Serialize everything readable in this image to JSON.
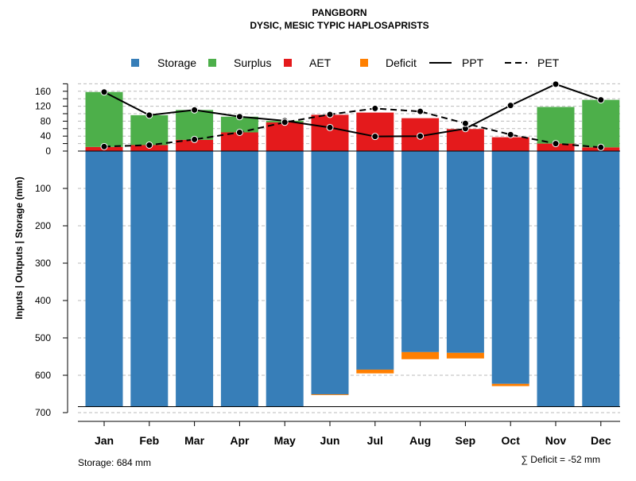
{
  "chart_data": {
    "type": "bar",
    "title": "PANGBORN",
    "subtitle": "DYSIC, MESIC TYPIC HAPLOSAPRISTS",
    "ylabel": "Inputs | Outputs | Storage    (mm)",
    "categories": [
      "Jan",
      "Feb",
      "Mar",
      "Apr",
      "May",
      "Jun",
      "Jul",
      "Aug",
      "Sep",
      "Oct",
      "Nov",
      "Dec"
    ],
    "upper_ticks": [
      0,
      40,
      80,
      120,
      160
    ],
    "lower_ticks": [
      100,
      200,
      300,
      400,
      500,
      600,
      700
    ],
    "ylim": [
      -700,
      180
    ],
    "legend": [
      "Storage",
      "Surplus",
      "AET",
      "Deficit",
      "PPT",
      "PET"
    ],
    "legend_position": "top",
    "colors": {
      "storage": "#377EB8",
      "surplus": "#4DAF4A",
      "aet": "#E41A1C",
      "deficit": "#FF7F00"
    },
    "series": [
      {
        "name": "Storage",
        "values": [
          684,
          684,
          684,
          684,
          684,
          651,
          585,
          538,
          540,
          623,
          684,
          684
        ]
      },
      {
        "name": "Deficit",
        "values": [
          0,
          0,
          0,
          0,
          0,
          2,
          10,
          19,
          15,
          6,
          0,
          0
        ]
      },
      {
        "name": "AET",
        "values": [
          11,
          16,
          30,
          50,
          77,
          97,
          103,
          88,
          59,
          37,
          20,
          10
        ]
      },
      {
        "name": "Surplus",
        "values": [
          147,
          80,
          80,
          42,
          4,
          0,
          0,
          0,
          0,
          0,
          98,
          127
        ]
      },
      {
        "name": "PPT",
        "values": [
          158,
          96,
          110,
          92,
          81,
          63,
          39,
          40,
          60,
          122,
          179,
          137
        ]
      },
      {
        "name": "PET",
        "values": [
          12,
          16,
          31,
          50,
          77,
          98,
          114,
          106,
          74,
          44,
          20,
          10
        ]
      }
    ],
    "notes": {
      "storage": "Storage: 684 mm",
      "deficit": "∑ Deficit = -52 mm"
    }
  }
}
